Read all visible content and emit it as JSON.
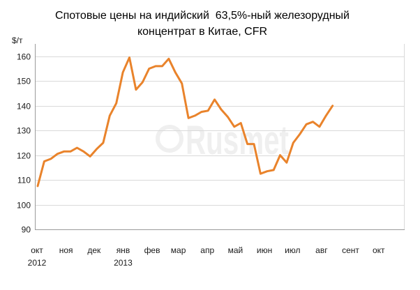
{
  "chart_data": {
    "type": "line",
    "title": [
      "Спотовые цены на индийский  63,5%-ный железорудный",
      "концентрат в Китае, CFR"
    ],
    "ylabel": "$/т",
    "ylim": [
      90,
      165
    ],
    "yticks": [
      160,
      150,
      140,
      130,
      120,
      110,
      100,
      90
    ],
    "xlim": [
      "2012-10-01",
      "2013-10-31"
    ],
    "xticks": [
      {
        "date": "2012-10-01",
        "label": "окт",
        "year": "2012"
      },
      {
        "date": "2012-11-01",
        "label": "ноя"
      },
      {
        "date": "2012-12-01",
        "label": "дек"
      },
      {
        "date": "2013-01-01",
        "label": "янв",
        "year": "2013"
      },
      {
        "date": "2013-02-01",
        "label": "фев"
      },
      {
        "date": "2013-03-01",
        "label": "мар"
      },
      {
        "date": "2013-04-01",
        "label": "апр"
      },
      {
        "date": "2013-05-01",
        "label": "май"
      },
      {
        "date": "2013-06-01",
        "label": "июн"
      },
      {
        "date": "2013-07-01",
        "label": "июл"
      },
      {
        "date": "2013-08-01",
        "label": "авг"
      },
      {
        "date": "2013-09-01",
        "label": "сент"
      },
      {
        "date": "2013-10-01",
        "label": "окт"
      }
    ],
    "grid": true,
    "legend": "none",
    "x": [
      "2012-10-04",
      "2012-10-11",
      "2012-10-18",
      "2012-10-25",
      "2012-11-01",
      "2012-11-08",
      "2012-11-15",
      "2012-11-22",
      "2012-11-29",
      "2012-12-06",
      "2012-12-13",
      "2012-12-20",
      "2012-12-27",
      "2013-01-03",
      "2013-01-10",
      "2013-01-17",
      "2013-01-24",
      "2013-01-31",
      "2013-02-07",
      "2013-02-14",
      "2013-02-21",
      "2013-02-28",
      "2013-03-07",
      "2013-03-14",
      "2013-03-21",
      "2013-03-28",
      "2013-04-04",
      "2013-04-11",
      "2013-04-18",
      "2013-04-25",
      "2013-05-02",
      "2013-05-09",
      "2013-05-16",
      "2013-05-23",
      "2013-05-30",
      "2013-06-06",
      "2013-06-13",
      "2013-06-20",
      "2013-06-27",
      "2013-07-04",
      "2013-07-11",
      "2013-07-18",
      "2013-07-25",
      "2013-08-01",
      "2013-08-08",
      "2013-08-15"
    ],
    "series": [
      {
        "color": "#E9832B",
        "values": [
          107.5,
          117.5,
          118.5,
          120.5,
          121.5,
          121.5,
          123,
          121.5,
          119.5,
          122.5,
          125,
          136,
          141,
          153.5,
          159.5,
          146.5,
          149.5,
          155,
          156,
          156,
          159,
          153.5,
          149,
          135,
          136,
          137.5,
          138,
          142.5,
          138.5,
          135.5,
          131.5,
          133,
          124.5,
          124.5,
          112.5,
          113.5,
          114,
          120,
          117,
          125,
          128.5,
          132.5,
          133.5,
          131.5,
          136,
          140
        ]
      }
    ]
  },
  "watermark": "Rusmet"
}
